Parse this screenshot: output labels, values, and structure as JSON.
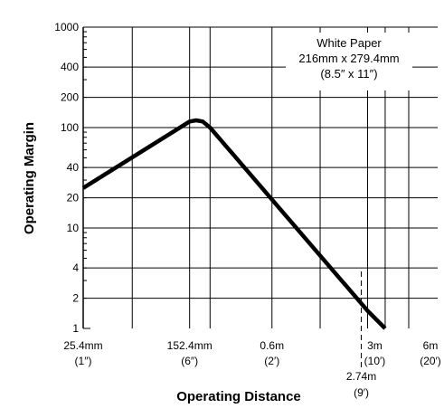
{
  "chart_data": {
    "type": "line",
    "xlabel": "Operating Distance",
    "ylabel": "Operating Margin",
    "y_scale": "log",
    "ylim": [
      1,
      1000
    ],
    "x_scale": "log",
    "x_unit": "mm",
    "xlim": [
      25.4,
      6096
    ],
    "grid": true,
    "y_ticks": [
      {
        "value": 1,
        "label": "1"
      },
      {
        "value": 2,
        "label": "2"
      },
      {
        "value": 4,
        "label": "4"
      },
      {
        "value": 10,
        "label": "10"
      },
      {
        "value": 20,
        "label": "20"
      },
      {
        "value": 40,
        "label": "40"
      },
      {
        "value": 100,
        "label": "100"
      },
      {
        "value": 200,
        "label": "200"
      },
      {
        "value": 400,
        "label": "400"
      },
      {
        "value": 1000,
        "label": "1000"
      }
    ],
    "x_ticks": [
      {
        "value": 25.4,
        "label": "25.4mm",
        "sublabel": "(1″)"
      },
      {
        "value": 152.4,
        "label": "152.4mm",
        "sublabel": "(6″)"
      },
      {
        "value": 609.6,
        "label": "0.6m",
        "sublabel": "(2′)"
      },
      {
        "value": 2743,
        "label": "2.74m",
        "sublabel": "(9′)"
      },
      {
        "value": 3048,
        "label": "3m",
        "sublabel": "(10′)"
      },
      {
        "value": 6096,
        "label": "6m",
        "sublabel": "(20′)"
      }
    ],
    "x_gridlines": [
      58,
      152.4,
      215,
      609.6,
      1372,
      3048,
      4100,
      6096
    ],
    "series": [
      {
        "points": [
          [
            25.4,
            25
          ],
          [
            152.4,
            115
          ],
          [
            170,
            118
          ],
          [
            190,
            115
          ],
          [
            215,
            100
          ],
          [
            3048,
            1.5
          ],
          [
            4100,
            1
          ]
        ]
      }
    ],
    "annotation": {
      "lines": [
        "White Paper",
        "216mm x 279.4mm",
        "(8.5″ x 11″)"
      ]
    }
  }
}
